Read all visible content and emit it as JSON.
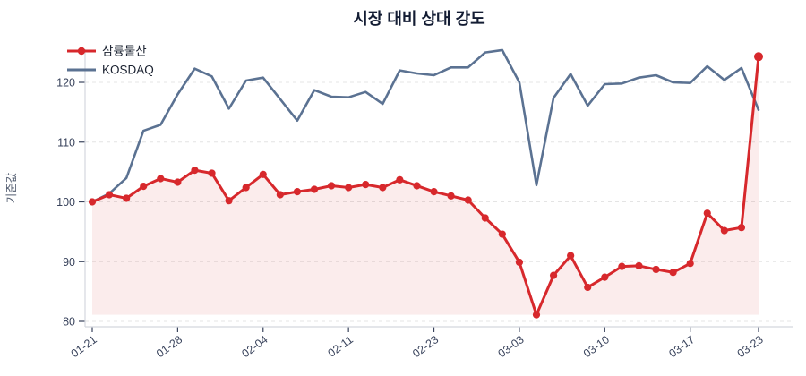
{
  "title": "시장 대비 상대 강도",
  "colors": {
    "stock_red": "#d7282c",
    "stock_fill": "rgba(215,40,44,0.09)",
    "kosdaq_slate": "#5b7292",
    "grid": "#e4e4e4",
    "spine": "#d4d7de",
    "tick_mark": "#39435c",
    "title_text": "#131c33",
    "background": "#ffffff"
  },
  "chart_data": {
    "type": "line",
    "title": "시장 대비 상대 강도",
    "xlabel": "",
    "ylabel": "기준값",
    "ylim": [
      80,
      126
    ],
    "y_ticks": [
      80,
      90,
      100,
      110,
      120
    ],
    "grid": "horizontal-dashed",
    "legend_position": "top-left",
    "n_points": 40,
    "x_tick_labels": [
      "01-21",
      "01-28",
      "02-04",
      "02-11",
      "02-23",
      "03-03",
      "03-10",
      "03-17",
      "03-23"
    ],
    "x_tick_indices": [
      0,
      5,
      10,
      15,
      20,
      25,
      30,
      35,
      39
    ],
    "series": [
      {
        "name": "삼륭물산",
        "color": "#d7282c",
        "marker": true,
        "area_fill": true,
        "values": [
          100.0,
          101.2,
          100.6,
          102.6,
          103.9,
          103.3,
          105.3,
          104.8,
          100.2,
          102.4,
          104.6,
          101.2,
          101.7,
          102.1,
          102.7,
          102.4,
          102.9,
          102.4,
          103.7,
          102.7,
          101.7,
          101.0,
          100.3,
          97.3,
          94.6,
          89.9,
          81.1,
          87.7,
          91.0,
          85.7,
          87.4,
          89.2,
          89.3,
          88.7,
          88.2,
          89.7,
          98.1,
          95.2,
          95.7,
          124.3
        ]
      },
      {
        "name": "KOSDAQ",
        "color": "#5b7292",
        "marker": false,
        "area_fill": false,
        "values": [
          100.0,
          101.4,
          104.0,
          111.9,
          112.9,
          118.0,
          122.3,
          121.0,
          115.6,
          120.3,
          120.8,
          117.2,
          113.6,
          118.7,
          117.6,
          117.5,
          118.4,
          116.4,
          122.0,
          121.5,
          121.2,
          122.5,
          122.5,
          125.0,
          125.4,
          120.0,
          102.8,
          117.4,
          121.4,
          116.1,
          119.7,
          119.8,
          120.8,
          121.2,
          120.0,
          119.9,
          122.7,
          120.4,
          122.4,
          115.4
        ]
      }
    ]
  }
}
